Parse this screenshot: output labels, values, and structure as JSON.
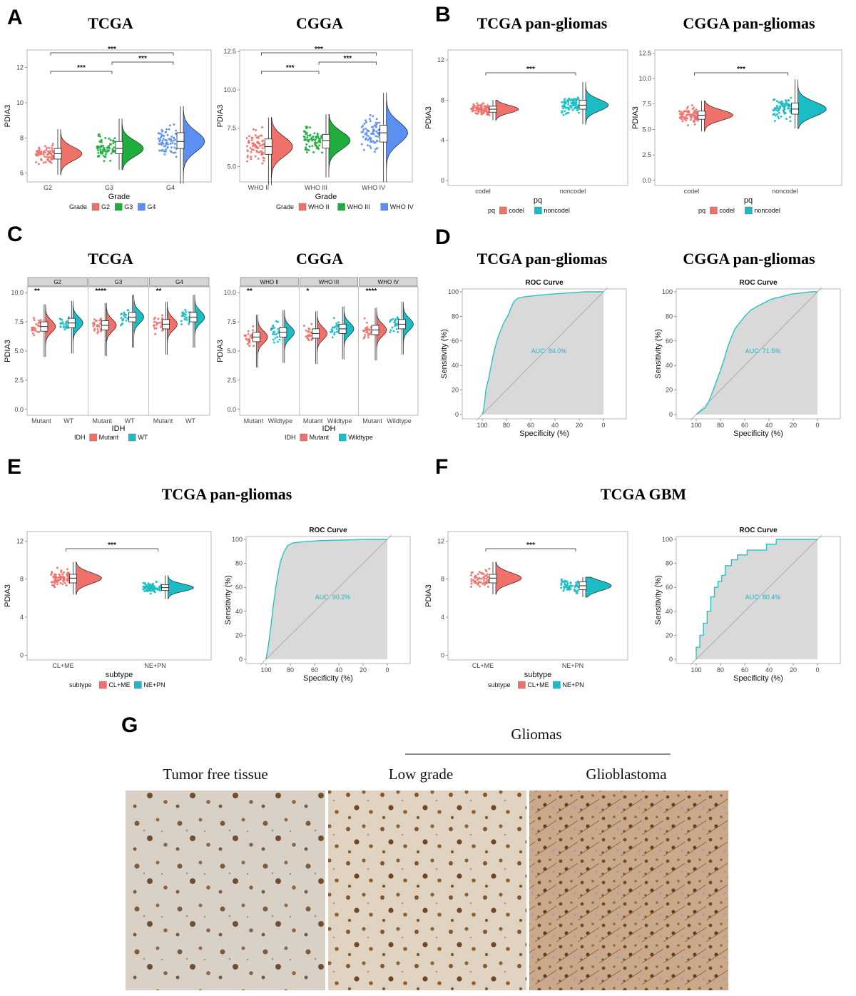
{
  "colors": {
    "red": "#f0706a",
    "green": "#1fad3e",
    "blue": "#5b8ff0",
    "teal": "#1bbcc4",
    "roc": "#26c2c9",
    "fill": "#d9d9d9"
  },
  "panels": {
    "A": "A",
    "B": "B",
    "C": "C",
    "D": "D",
    "E": "E",
    "F": "F",
    "G": "G"
  },
  "titles": {
    "a_tcga": "TCGA",
    "a_cgga": "CGGA",
    "b_tcga": "TCGA  pan-gliomas",
    "b_cgga": "CGGA  pan-gliomas",
    "c_tcga": "TCGA",
    "c_cgga": "CGGA",
    "d_tcga": "TCGA  pan-gliomas",
    "d_cgga": "CGGA  pan-gliomas",
    "e": "TCGA  pan-gliomas",
    "f": "TCGA  GBM"
  },
  "histology": {
    "gliomas": "Gliomas",
    "tumor_free": "Tumor free tissue",
    "low_grade": "Low grade",
    "glioblastoma": "Glioblastoma"
  },
  "chart_data": [
    {
      "id": "A1",
      "type": "scatter",
      "title": "TCGA",
      "xlabel": "Grade",
      "ylabel": "PDIA3",
      "ylim": [
        5.5,
        13
      ],
      "yticks": [
        "6",
        "8",
        "10",
        "12"
      ],
      "categories": [
        "G2",
        "G3",
        "G4"
      ],
      "series": [
        {
          "name": "G2",
          "color": "red",
          "median": 7.1,
          "q1": 6.8,
          "q3": 7.4,
          "min": 5.9,
          "max": 8.5
        },
        {
          "name": "G3",
          "color": "green",
          "median": 7.4,
          "q1": 7.1,
          "q3": 7.8,
          "min": 6.2,
          "max": 9.1
        },
        {
          "name": "G4",
          "color": "blue",
          "median": 7.8,
          "q1": 7.4,
          "q3": 8.3,
          "min": 5.4,
          "max": 9.8
        }
      ],
      "sig": [
        {
          "from": 0,
          "to": 2,
          "label": "***",
          "level": 2
        },
        {
          "from": 0,
          "to": 1,
          "label": "***",
          "level": 0
        },
        {
          "from": 1,
          "to": 2,
          "label": "***",
          "level": 1
        }
      ],
      "legend_title": "Grade",
      "legend": [
        "G2",
        "G3",
        "G4"
      ]
    },
    {
      "id": "A2",
      "type": "scatter",
      "title": "CGGA",
      "xlabel": "Grade",
      "ylabel": "PDIA3",
      "ylim": [
        4,
        12.6
      ],
      "yticks": [
        "5.0",
        "7.5",
        "10.0",
        "12.5"
      ],
      "categories": [
        "WHO II",
        "WHO III",
        "WHO IV"
      ],
      "series": [
        {
          "name": "WHO II",
          "color": "red",
          "median": 6.3,
          "q1": 5.8,
          "q3": 6.8,
          "min": 3.8,
          "max": 8.2
        },
        {
          "name": "WHO III",
          "color": "green",
          "median": 6.7,
          "q1": 6.2,
          "q3": 7.1,
          "min": 4.3,
          "max": 8.4
        },
        {
          "name": "WHO IV",
          "color": "blue",
          "median": 7.2,
          "q1": 6.6,
          "q3": 7.7,
          "min": 4.0,
          "max": 9.8
        }
      ],
      "sig": [
        {
          "from": 0,
          "to": 2,
          "label": "***",
          "level": 2
        },
        {
          "from": 0,
          "to": 1,
          "label": "***",
          "level": 0
        },
        {
          "from": 1,
          "to": 2,
          "label": "***",
          "level": 1
        }
      ],
      "legend_title": "Grade",
      "legend": [
        "WHO II",
        "WHO III",
        "WHO IV"
      ]
    },
    {
      "id": "B1",
      "type": "scatter",
      "title": "TCGA pan-gliomas",
      "xlabel": "pq",
      "ylabel": "PDIA3",
      "ylim": [
        -0.5,
        13
      ],
      "yticks": [
        "0",
        "4",
        "8",
        "12"
      ],
      "categories": [
        "codel",
        "noncodel"
      ],
      "series": [
        {
          "name": "codel",
          "color": "red",
          "median": 7.1,
          "q1": 6.8,
          "q3": 7.4,
          "min": 6.0,
          "max": 8.0
        },
        {
          "name": "noncodel",
          "color": "teal",
          "median": 7.5,
          "q1": 7.1,
          "q3": 8.0,
          "min": 5.6,
          "max": 9.8
        }
      ],
      "sig": [
        {
          "from": 0,
          "to": 1,
          "label": "***",
          "level": 0
        }
      ],
      "legend_title": "pq",
      "legend": [
        "codel",
        "noncodel"
      ]
    },
    {
      "id": "B2",
      "type": "scatter",
      "title": "CGGA pan-gliomas",
      "xlabel": "pq",
      "ylabel": "PDIA3",
      "ylim": [
        -0.5,
        12.8
      ],
      "yticks": [
        "0.0",
        "2.5",
        "5.0",
        "7.5",
        "10.0",
        "12.5"
      ],
      "categories": [
        "codel",
        "noncodel"
      ],
      "series": [
        {
          "name": "codel",
          "color": "red",
          "median": 6.4,
          "q1": 6.0,
          "q3": 6.8,
          "min": 4.8,
          "max": 7.8
        },
        {
          "name": "noncodel",
          "color": "teal",
          "median": 7.0,
          "q1": 6.5,
          "q3": 7.6,
          "min": 5.1,
          "max": 9.9
        }
      ],
      "sig": [
        {
          "from": 0,
          "to": 1,
          "label": "***",
          "level": 0
        }
      ],
      "legend_title": "pq",
      "legend": [
        "codel",
        "noncodel"
      ]
    },
    {
      "id": "C1",
      "type": "scatter",
      "title": "TCGA",
      "xlabel": "IDH",
      "ylabel": "PDIA3",
      "ylim": [
        -0.5,
        10.5
      ],
      "yticks": [
        "0.0",
        "2.5",
        "5.0",
        "7.5",
        "10.0"
      ],
      "facets": [
        {
          "label": "G2",
          "sig": "**",
          "groups": [
            {
              "name": "Mutant",
              "color": "red",
              "median": 7.1
            },
            {
              "name": "WT",
              "color": "teal",
              "median": 7.4
            }
          ]
        },
        {
          "label": "G3",
          "sig": "****",
          "groups": [
            {
              "name": "Mutant",
              "color": "red",
              "median": 7.2
            },
            {
              "name": "WT",
              "color": "teal",
              "median": 7.9
            }
          ]
        },
        {
          "label": "G4",
          "sig": "**",
          "groups": [
            {
              "name": "Mutant",
              "color": "red",
              "median": 7.3
            },
            {
              "name": "WT",
              "color": "teal",
              "median": 7.9
            }
          ]
        }
      ],
      "legend_title": "IDH",
      "legend": [
        "Mutant",
        "WT"
      ]
    },
    {
      "id": "C2",
      "type": "scatter",
      "title": "CGGA",
      "xlabel": "IDH",
      "ylabel": "PDIA3",
      "ylim": [
        -0.5,
        10.5
      ],
      "yticks": [
        "0.0",
        "2.5",
        "5.0",
        "7.5",
        "10.0"
      ],
      "facets": [
        {
          "label": "WHO II",
          "sig": "**",
          "groups": [
            {
              "name": "Mutant",
              "color": "red",
              "median": 6.2
            },
            {
              "name": "Wildtype",
              "color": "teal",
              "median": 6.6
            }
          ]
        },
        {
          "label": "WHO III",
          "sig": "*",
          "groups": [
            {
              "name": "Mutant",
              "color": "red",
              "median": 6.5
            },
            {
              "name": "Wildtype",
              "color": "teal",
              "median": 6.9
            }
          ]
        },
        {
          "label": "WHO IV",
          "sig": "****",
          "groups": [
            {
              "name": "Mutant",
              "color": "red",
              "median": 6.8
            },
            {
              "name": "Wildtype",
              "color": "teal",
              "median": 7.3
            }
          ]
        }
      ],
      "legend_title": "IDH",
      "legend": [
        "Mutant",
        "Wildtype"
      ]
    },
    {
      "id": "D1",
      "type": "line",
      "title": "ROC Curve",
      "xlabel": "Specificity (%)",
      "ylabel": "Sensitivity (%)",
      "auc_label": "AUC: 84.0%",
      "xticks": [
        "100",
        "80",
        "60",
        "40",
        "20",
        "0"
      ],
      "yticks": [
        "0",
        "20",
        "40",
        "60",
        "80",
        "100"
      ],
      "points": [
        [
          100,
          0
        ],
        [
          99,
          3
        ],
        [
          98,
          10
        ],
        [
          97,
          20
        ],
        [
          95,
          28
        ],
        [
          93,
          38
        ],
        [
          91,
          48
        ],
        [
          89,
          56
        ],
        [
          87,
          63
        ],
        [
          85,
          68
        ],
        [
          83,
          73
        ],
        [
          81,
          77
        ],
        [
          79,
          80
        ],
        [
          77,
          85
        ],
        [
          75,
          90
        ],
        [
          73,
          93
        ],
        [
          70,
          95
        ],
        [
          65,
          96
        ],
        [
          55,
          97
        ],
        [
          45,
          98
        ],
        [
          30,
          99
        ],
        [
          15,
          100
        ],
        [
          0,
          100
        ]
      ]
    },
    {
      "id": "D2",
      "type": "line",
      "title": "ROC Curve",
      "xlabel": "Specificity (%)",
      "ylabel": "Sensitivity (%)",
      "auc_label": "AUC: 71.5%",
      "xticks": [
        "100",
        "80",
        "60",
        "40",
        "20",
        "0"
      ],
      "yticks": [
        "0",
        "20",
        "40",
        "60",
        "80",
        "100"
      ],
      "points": [
        [
          100,
          0
        ],
        [
          96,
          3
        ],
        [
          92,
          6
        ],
        [
          89,
          12
        ],
        [
          86,
          20
        ],
        [
          83,
          28
        ],
        [
          80,
          36
        ],
        [
          77,
          45
        ],
        [
          74,
          55
        ],
        [
          71,
          63
        ],
        [
          68,
          70
        ],
        [
          64,
          75
        ],
        [
          60,
          80
        ],
        [
          55,
          85
        ],
        [
          50,
          88
        ],
        [
          44,
          91
        ],
        [
          38,
          94
        ],
        [
          30,
          96
        ],
        [
          22,
          98
        ],
        [
          14,
          99
        ],
        [
          5,
          100
        ],
        [
          0,
          100
        ]
      ]
    },
    {
      "id": "E1",
      "type": "scatter",
      "title": "",
      "xlabel": "subtype",
      "ylabel": "PDIA3",
      "ylim": [
        -0.5,
        13
      ],
      "yticks": [
        "0",
        "4",
        "8",
        "12"
      ],
      "categories": [
        "CL+ME",
        "NE+PN"
      ],
      "series": [
        {
          "name": "CL+ME",
          "color": "red",
          "median": 8.1,
          "q1": 7.6,
          "q3": 8.5,
          "min": 6.4,
          "max": 9.8
        },
        {
          "name": "NE+PN",
          "color": "teal",
          "median": 7.1,
          "q1": 6.8,
          "q3": 7.4,
          "min": 5.9,
          "max": 8.4
        }
      ],
      "sig": [
        {
          "from": 0,
          "to": 1,
          "label": "***",
          "level": 0
        }
      ],
      "legend_title": "subtype",
      "legend": [
        "CL+ME",
        "NE+PN"
      ]
    },
    {
      "id": "E2",
      "type": "line",
      "title": "ROC Curve",
      "xlabel": "Specificity (%)",
      "ylabel": "Sensitivity (%)",
      "auc_label": "AUC: 90.2%",
      "xticks": [
        "100",
        "80",
        "60",
        "40",
        "20",
        "0"
      ],
      "yticks": [
        "0",
        "20",
        "40",
        "60",
        "80",
        "100"
      ],
      "points": [
        [
          100,
          0
        ],
        [
          98,
          12
        ],
        [
          96,
          28
        ],
        [
          94,
          45
        ],
        [
          92,
          60
        ],
        [
          90,
          72
        ],
        [
          88,
          82
        ],
        [
          85,
          90
        ],
        [
          82,
          95
        ],
        [
          78,
          97
        ],
        [
          70,
          98
        ],
        [
          55,
          99
        ],
        [
          35,
          99.5
        ],
        [
          15,
          100
        ],
        [
          0,
          100
        ]
      ]
    },
    {
      "id": "F1",
      "type": "scatter",
      "title": "",
      "xlabel": "subtype",
      "ylabel": "PDIA3",
      "ylim": [
        -0.5,
        13
      ],
      "yticks": [
        "0",
        "4",
        "8",
        "12"
      ],
      "categories": [
        "CL+ME",
        "NE+PN"
      ],
      "series": [
        {
          "name": "CL+ME",
          "color": "red",
          "median": 8.1,
          "q1": 7.6,
          "q3": 8.5,
          "min": 6.4,
          "max": 9.8
        },
        {
          "name": "NE+PN",
          "color": "teal",
          "median": 7.3,
          "q1": 6.9,
          "q3": 7.7,
          "min": 6.1,
          "max": 8.2
        }
      ],
      "sig": [
        {
          "from": 0,
          "to": 1,
          "label": "***",
          "level": 0
        }
      ],
      "legend_title": "subtype",
      "legend": [
        "CL+ME",
        "NE+PN"
      ]
    },
    {
      "id": "F2",
      "type": "line",
      "title": "ROC Curve",
      "xlabel": "Specificity (%)",
      "ylabel": "Sensitivity (%)",
      "auc_label": "AUC: 80.4%",
      "xticks": [
        "100",
        "80",
        "60",
        "40",
        "20",
        "0"
      ],
      "yticks": [
        "0",
        "20",
        "40",
        "60",
        "80",
        "100"
      ],
      "points": [
        [
          100,
          0
        ],
        [
          100,
          10
        ],
        [
          97,
          10
        ],
        [
          97,
          20
        ],
        [
          94,
          20
        ],
        [
          94,
          30
        ],
        [
          91,
          30
        ],
        [
          91,
          40
        ],
        [
          88,
          40
        ],
        [
          88,
          52
        ],
        [
          85,
          52
        ],
        [
          85,
          60
        ],
        [
          82,
          60
        ],
        [
          82,
          65
        ],
        [
          79,
          65
        ],
        [
          79,
          70
        ],
        [
          76,
          70
        ],
        [
          76,
          78
        ],
        [
          71,
          78
        ],
        [
          71,
          83
        ],
        [
          66,
          83
        ],
        [
          66,
          87
        ],
        [
          58,
          87
        ],
        [
          58,
          91
        ],
        [
          42,
          91
        ],
        [
          42,
          96
        ],
        [
          34,
          96
        ],
        [
          34,
          100
        ],
        [
          0,
          100
        ]
      ]
    }
  ]
}
